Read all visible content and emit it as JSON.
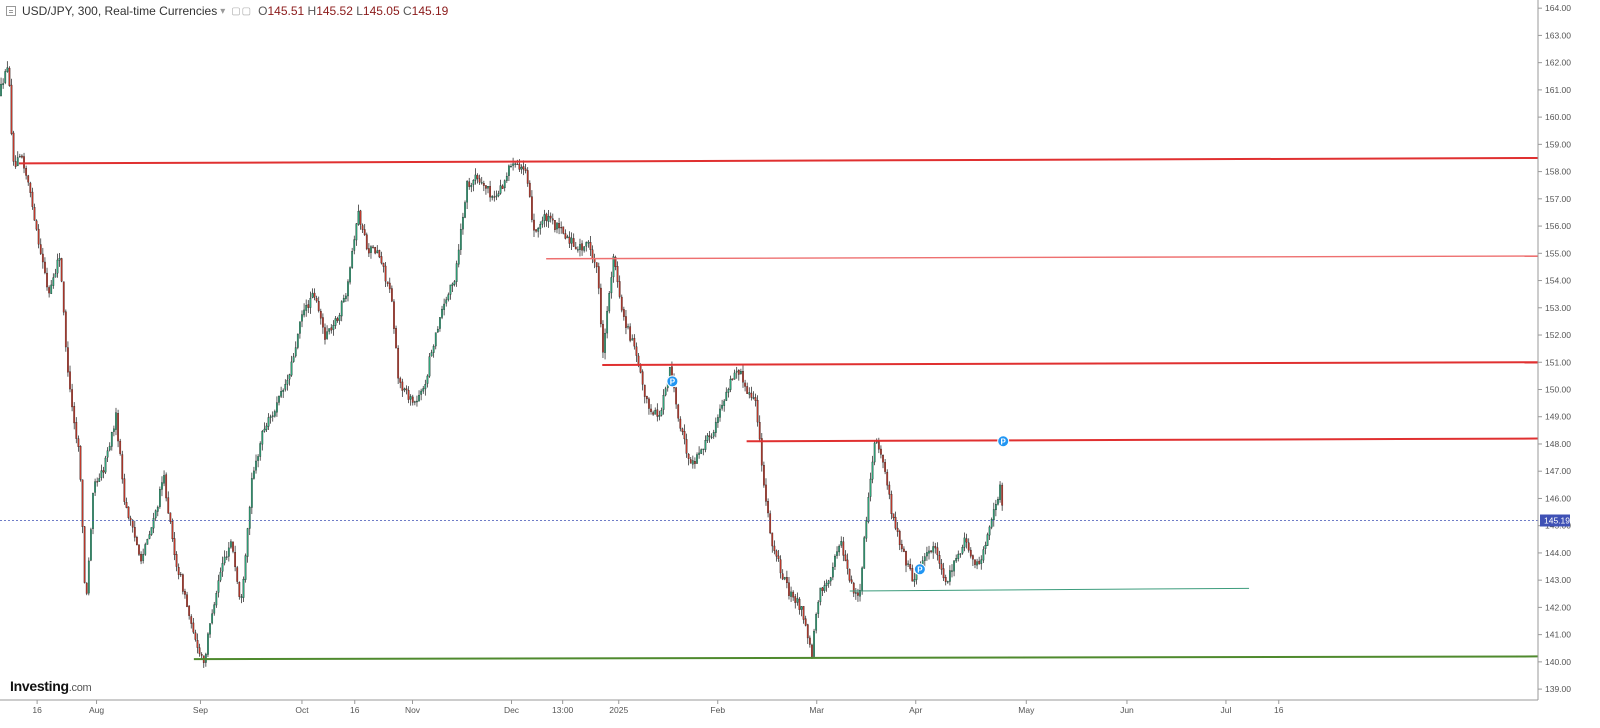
{
  "header": {
    "symbol": "USD/JPY, 300, Real-time Currencies",
    "open_label": "O",
    "open": "145.51",
    "high_label": "H",
    "high": "145.52",
    "low_label": "L",
    "low": "145.05",
    "close_label": "C",
    "close": "145.19"
  },
  "logo": {
    "brand": "Investing",
    "domain": ".com"
  },
  "chart_data": {
    "type": "candlestick",
    "ylim": [
      138.6,
      164.3
    ],
    "y_ticks": [
      "139.00",
      "140.00",
      "141.00",
      "142.00",
      "143.00",
      "144.00",
      "145.00",
      "146.00",
      "147.00",
      "148.00",
      "149.00",
      "150.00",
      "151.00",
      "152.00",
      "153.00",
      "154.00",
      "155.00",
      "156.00",
      "157.00",
      "158.00",
      "159.00",
      "160.00",
      "161.00",
      "162.00",
      "163.00",
      "164.00"
    ],
    "x_ticks": [
      "16",
      "Aug",
      "Sep",
      "Oct",
      "16",
      "Nov",
      "Dec",
      "13:00",
      "2025",
      "Feb",
      "Mar",
      "Apr",
      "May",
      "Jun",
      "Jul",
      "16"
    ],
    "price_line": {
      "value": 145.19,
      "label": "145.19"
    },
    "price_path": [
      [
        0,
        160.8
      ],
      [
        0.6,
        161.5
      ],
      [
        1.2,
        161.8
      ],
      [
        1.7,
        158.2
      ],
      [
        2.8,
        158.5
      ],
      [
        3.8,
        157.2
      ],
      [
        4.8,
        155.5
      ],
      [
        6,
        153.5
      ],
      [
        7.4,
        155
      ],
      [
        8.1,
        151.5
      ],
      [
        9.1,
        148.8
      ],
      [
        9.8,
        147.5
      ],
      [
        10.5,
        142
      ],
      [
        11.5,
        146.5
      ],
      [
        12.6,
        147
      ],
      [
        14.2,
        149
      ],
      [
        15.2,
        146
      ],
      [
        16.2,
        144.8
      ],
      [
        17.3,
        143.8
      ],
      [
        18.6,
        145
      ],
      [
        20,
        146.8
      ],
      [
        21.2,
        144
      ],
      [
        22.5,
        142.5
      ],
      [
        23.5,
        141
      ],
      [
        24.9,
        140
      ],
      [
        25.9,
        142
      ],
      [
        27,
        143.5
      ],
      [
        28.2,
        144.5
      ],
      [
        29.3,
        142
      ],
      [
        30.6,
        146.5
      ],
      [
        32,
        148.5
      ],
      [
        33.5,
        149.3
      ],
      [
        35.2,
        150.5
      ],
      [
        36.8,
        152.8
      ],
      [
        38.2,
        153.5
      ],
      [
        39.5,
        152
      ],
      [
        40.9,
        152.5
      ],
      [
        42,
        153.5
      ],
      [
        43.5,
        156.5
      ],
      [
        44.7,
        155.2
      ],
      [
        46,
        155
      ],
      [
        47.5,
        153.5
      ],
      [
        48.5,
        150.2
      ],
      [
        50.5,
        149.5
      ],
      [
        51.5,
        150
      ],
      [
        52.5,
        151.5
      ],
      [
        53.7,
        153
      ],
      [
        55.2,
        154
      ],
      [
        56.7,
        157.5
      ],
      [
        57.7,
        157.8
      ],
      [
        58.8,
        157.5
      ],
      [
        60,
        157
      ],
      [
        61,
        157.5
      ],
      [
        62.4,
        158.5
      ],
      [
        63.8,
        158
      ],
      [
        64.9,
        155.8
      ],
      [
        66.2,
        156.3
      ],
      [
        67.5,
        156
      ],
      [
        69.2,
        155.5
      ],
      [
        70.4,
        155.2
      ],
      [
        71.5,
        155.3
      ],
      [
        72.5,
        154.5
      ],
      [
        73.2,
        151.5
      ],
      [
        74.5,
        154.8
      ],
      [
        75.7,
        152.7
      ],
      [
        77,
        151.5
      ],
      [
        78.5,
        149.5
      ],
      [
        80,
        149
      ],
      [
        81.4,
        150.8
      ],
      [
        82.6,
        148.5
      ],
      [
        84,
        147.2
      ],
      [
        85.4,
        148
      ],
      [
        86.7,
        148.5
      ],
      [
        88.2,
        150
      ],
      [
        89.5,
        150.8
      ],
      [
        90.7,
        150
      ],
      [
        91.8,
        149.5
      ],
      [
        92.5,
        147.2
      ],
      [
        93.6,
        144.5
      ],
      [
        94.6,
        143.5
      ],
      [
        95.8,
        142.5
      ],
      [
        97.3,
        142
      ],
      [
        98.5,
        140.2
      ],
      [
        99.4,
        142.5
      ],
      [
        100.8,
        143.2
      ],
      [
        102,
        144.5
      ],
      [
        103.2,
        143
      ],
      [
        104.2,
        142.2
      ],
      [
        105.2,
        145.5
      ],
      [
        106.2,
        148.3
      ],
      [
        107.1,
        147.5
      ],
      [
        108.4,
        145.2
      ],
      [
        109.6,
        144
      ],
      [
        110.8,
        143
      ],
      [
        112,
        143.8
      ],
      [
        113.4,
        144.3
      ],
      [
        114.6,
        142.8
      ],
      [
        115.7,
        143.5
      ],
      [
        117,
        144.5
      ],
      [
        118.7,
        143.5
      ],
      [
        119.8,
        144.5
      ],
      [
        120.8,
        145.7
      ],
      [
        121.4,
        146.5
      ],
      [
        121.6,
        145.6
      ]
    ],
    "levels": [
      {
        "value": 158.3,
        "value_end": 158.5,
        "from": 2.3,
        "color": "#e03030",
        "width": 2
      },
      {
        "value": 154.8,
        "value_end": 154.9,
        "from": 66.2,
        "color": "#ee7070",
        "width": 1.4
      },
      {
        "value": 150.9,
        "value_end": 151.0,
        "from": 73.0,
        "color": "#e03030",
        "width": 2
      },
      {
        "value": 148.1,
        "value_end": 148.2,
        "from": 90.5,
        "color": "#e03030",
        "width": 2
      },
      {
        "value": 142.6,
        "value_end": 142.7,
        "from": 103.0,
        "to": 151.4,
        "color": "#3c9c7c",
        "width": 1
      },
      {
        "value": 140.1,
        "value_end": 140.2,
        "from": 23.5,
        "color": "#4f8a2e",
        "width": 2
      }
    ],
    "markers": [
      {
        "x": 81.5,
        "y": 150.3,
        "label": "P"
      },
      {
        "x": 111.5,
        "y": 143.4,
        "label": "P"
      },
      {
        "x": 121.6,
        "y": 148.1,
        "label": "P"
      }
    ],
    "colors": {
      "up": "#2fa57a",
      "down": "#c0392b",
      "wick": "#1a1a1a",
      "price_line": "#3f51b5",
      "price_tag": "#3f51b5"
    }
  }
}
